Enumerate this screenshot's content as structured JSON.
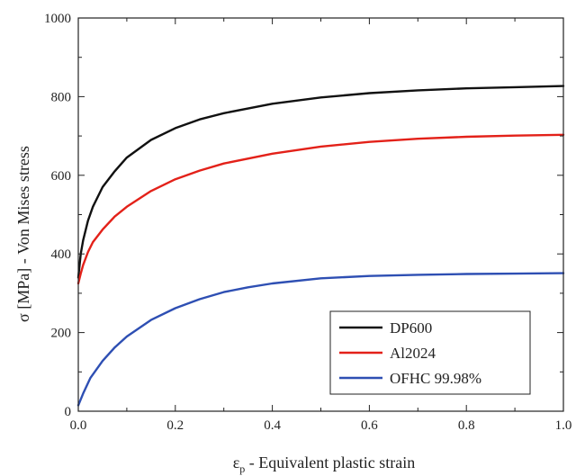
{
  "chart_data": {
    "type": "line",
    "title": "",
    "xlabel_symbol": "ε",
    "xlabel_subscript": "p",
    "xlabel_text": " - Equivalent plastic strain",
    "ylabel": "σ [MPa] - Von Mises stress",
    "xlim": [
      0.0,
      1.0
    ],
    "ylim": [
      0,
      1000
    ],
    "xticks": [
      "0.0",
      "0.2",
      "0.4",
      "0.6",
      "0.8",
      "1.0"
    ],
    "yticks": [
      "0",
      "200",
      "400",
      "600",
      "800",
      "1000"
    ],
    "grid": false,
    "legend_position": "bottom-right",
    "series": [
      {
        "name": "DP600",
        "color": "#111111",
        "x": [
          0.0,
          0.005,
          0.01,
          0.02,
          0.03,
          0.05,
          0.075,
          0.1,
          0.15,
          0.2,
          0.25,
          0.3,
          0.4,
          0.5,
          0.6,
          0.7,
          0.8,
          0.9,
          1.0
        ],
        "y": [
          340,
          400,
          435,
          485,
          520,
          570,
          610,
          645,
          690,
          720,
          742,
          758,
          782,
          798,
          809,
          816,
          821,
          824,
          827
        ]
      },
      {
        "name": "Al2024",
        "color": "#e32119",
        "x": [
          0.0,
          0.005,
          0.01,
          0.02,
          0.03,
          0.05,
          0.075,
          0.1,
          0.15,
          0.2,
          0.25,
          0.3,
          0.4,
          0.5,
          0.6,
          0.7,
          0.8,
          0.9,
          1.0
        ],
        "y": [
          325,
          350,
          372,
          405,
          430,
          462,
          495,
          520,
          560,
          590,
          612,
          630,
          655,
          673,
          685,
          693,
          698,
          701,
          703
        ]
      },
      {
        "name": "OFHC 99.98%",
        "color": "#2e4fb3",
        "x": [
          0.0,
          0.01,
          0.025,
          0.05,
          0.075,
          0.1,
          0.15,
          0.2,
          0.25,
          0.3,
          0.35,
          0.4,
          0.5,
          0.6,
          0.7,
          0.8,
          0.9,
          1.0
        ],
        "y": [
          15,
          45,
          85,
          128,
          162,
          190,
          232,
          262,
          285,
          303,
          315,
          325,
          338,
          344,
          347,
          349,
          350,
          351
        ]
      }
    ]
  }
}
